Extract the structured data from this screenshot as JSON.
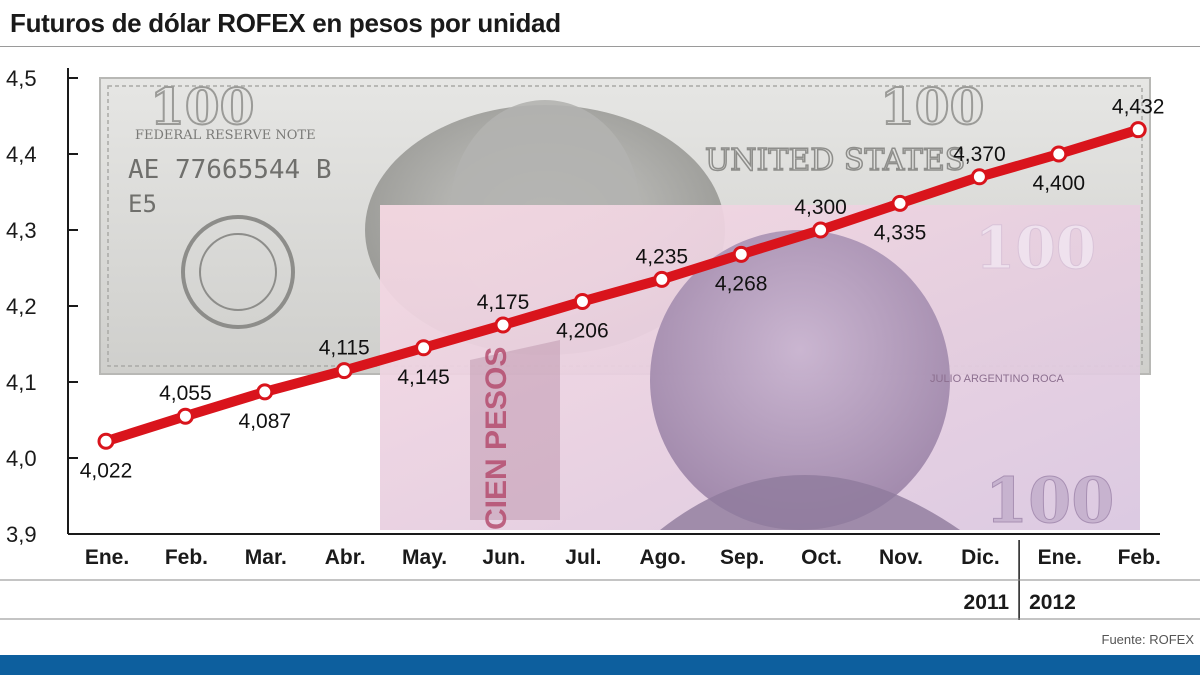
{
  "title": "Futuros de dólar ROFEX en pesos por unidad",
  "source": "Fuente: ROFEX",
  "colors": {
    "line": "#d9141c",
    "bottom_bar": "#0d5f9e",
    "axis": "#1a1a1a"
  },
  "illustration": {
    "usd_serial": "AE 77665544 B",
    "usd_series": "E5",
    "usd_note_text": "FEDERAL RESERVE NOTE",
    "usd_denomination": "100",
    "usd_country_text": "UNITED STATES",
    "ars_denomination": "100",
    "ars_vertical_text": "CIEN PESOS",
    "ars_portrait_caption": "JULIO ARGENTINO ROCA"
  },
  "chart_data": {
    "type": "line",
    "title": "Futuros de dólar ROFEX en pesos por unidad",
    "categories": [
      "Ene.",
      "Feb.",
      "Mar.",
      "Abr.",
      "May.",
      "Jun.",
      "Jul.",
      "Ago.",
      "Sep.",
      "Oct.",
      "Nov.",
      "Dic.",
      "Ene.",
      "Feb."
    ],
    "years": [
      {
        "label": "2011",
        "from": 0,
        "to": 11
      },
      {
        "label": "2012",
        "from": 12,
        "to": 13
      }
    ],
    "values": [
      4.022,
      4.055,
      4.087,
      4.115,
      4.145,
      4.175,
      4.206,
      4.235,
      4.268,
      4.3,
      4.335,
      4.37,
      4.4,
      4.432
    ],
    "value_labels": [
      "4,022",
      "4,055",
      "4,087",
      "4,115",
      "4,145",
      "4,175",
      "4,206",
      "4,235",
      "4,268",
      "4,300",
      "4,335",
      "4,370",
      "4,400",
      "4,432"
    ],
    "label_positions": [
      "below",
      "above",
      "below",
      "above",
      "below",
      "above",
      "below",
      "above",
      "below",
      "above",
      "below",
      "above",
      "below",
      "above"
    ],
    "ylim": [
      3.9,
      4.5
    ],
    "yticks": [
      3.9,
      4.0,
      4.1,
      4.2,
      4.3,
      4.4,
      4.5
    ],
    "ytick_labels": [
      "3,9",
      "4,0",
      "4,1",
      "4,2",
      "4,3",
      "4,4",
      "4,5"
    ],
    "grid": false,
    "legend": "none"
  }
}
